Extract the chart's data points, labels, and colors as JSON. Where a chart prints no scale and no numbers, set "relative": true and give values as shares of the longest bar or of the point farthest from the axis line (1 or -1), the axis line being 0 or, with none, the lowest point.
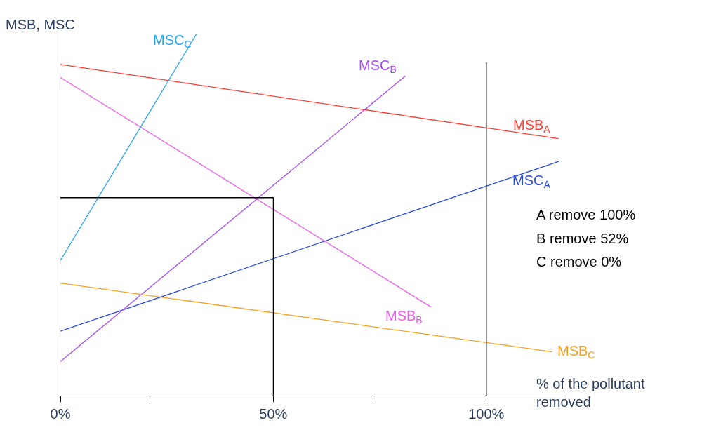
{
  "chart_data": {
    "type": "line",
    "relative": true,
    "ylabel": "MSB, MSC",
    "xlabel": "% of the pollutant removed",
    "xlim": [
      0,
      118
    ],
    "xticks": [
      {
        "value": 0,
        "label": "0%"
      },
      {
        "value": 21,
        "label": null
      },
      {
        "value": 50,
        "label": "50%"
      },
      {
        "value": 73,
        "label": null
      },
      {
        "value": 100,
        "label": "100%"
      }
    ],
    "series": [
      {
        "name": "MSB$_{A}$",
        "color": "#ff3b30",
        "x": [
          0,
          117
        ],
        "values": [
          0.915,
          0.71
        ]
      },
      {
        "name": "MSC$_{A}$",
        "color": "#2a4be0",
        "x": [
          0,
          117
        ],
        "values": [
          0.178,
          0.647
        ]
      },
      {
        "name": "MSB$_{B}$",
        "color": "#f05af0",
        "x": [
          0,
          87
        ],
        "values": [
          0.879,
          0.245
        ]
      },
      {
        "name": "MSC$_{B}$",
        "color": "#a64cf5",
        "x": [
          0,
          81
        ],
        "values": [
          0.094,
          0.883
        ]
      },
      {
        "name": "MSC$_{C}$",
        "color": "#27a6f2",
        "x": [
          0,
          32
        ],
        "values": [
          0.373,
          1.0
        ]
      },
      {
        "name": "MSB$_{C}$",
        "color": "#f5a020",
        "x": [
          0,
          115.5
        ],
        "values": [
          0.311,
          0.121
        ]
      },
      {
        "color": "#000000",
        "x": [
          0,
          50,
          50
        ],
        "values": [
          0.547,
          0.547,
          0
        ]
      }
    ],
    "ref_lines": [
      {
        "axis": "x",
        "value": 100,
        "color": "#000000"
      }
    ],
    "annotations": [
      "A remove 100%",
      "B remove 52%",
      "C remove 0%"
    ],
    "legend": false,
    "marker": "none",
    "line_style": "solid"
  }
}
